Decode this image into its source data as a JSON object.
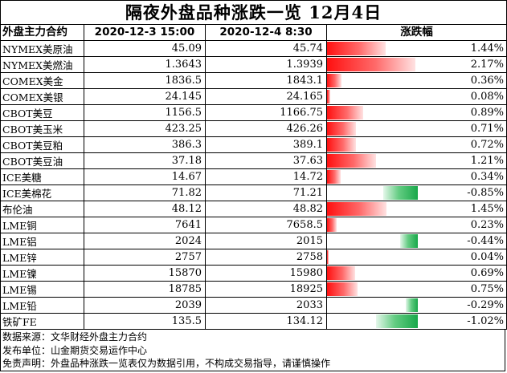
{
  "title": "隔夜外盘品种涨跌一览 12月4日",
  "headers": {
    "name": "外盘主力合约",
    "prev": "2020-12-3 15:00",
    "curr": "2020-12-4 8:30",
    "change": "涨跌幅"
  },
  "colors": {
    "up": "#ff1010",
    "down": "#19a84a"
  },
  "rows": [
    {
      "name": "NYMEX美原油",
      "prev": "45.09",
      "curr": "45.74",
      "change": "1.44%",
      "pct": 1.44
    },
    {
      "name": "NYMEX美燃油",
      "prev": "1.3643",
      "curr": "1.3939",
      "change": "2.17%",
      "pct": 2.17
    },
    {
      "name": "COMEX美金",
      "prev": "1836.5",
      "curr": "1843.1",
      "change": "0.36%",
      "pct": 0.36
    },
    {
      "name": "COMEX美银",
      "prev": "24.145",
      "curr": "24.165",
      "change": "0.08%",
      "pct": 0.08
    },
    {
      "name": "CBOT美豆",
      "prev": "1156.5",
      "curr": "1166.75",
      "change": "0.89%",
      "pct": 0.89
    },
    {
      "name": "CBOT美玉米",
      "prev": "423.25",
      "curr": "426.26",
      "change": "0.71%",
      "pct": 0.71
    },
    {
      "name": "CBOT美豆粕",
      "prev": "386.3",
      "curr": "389.1",
      "change": "0.72%",
      "pct": 0.72
    },
    {
      "name": "CBOT美豆油",
      "prev": "37.18",
      "curr": "37.63",
      "change": "1.21%",
      "pct": 1.21
    },
    {
      "name": "ICE美糖",
      "prev": "14.67",
      "curr": "14.72",
      "change": "0.34%",
      "pct": 0.34
    },
    {
      "name": "ICE美棉花",
      "prev": "71.82",
      "curr": "71.21",
      "change": "-0.85%",
      "pct": -0.85
    },
    {
      "name": "布伦油",
      "prev": "48.12",
      "curr": "48.82",
      "change": "1.45%",
      "pct": 1.45
    },
    {
      "name": "LME铜",
      "prev": "7641",
      "curr": "7658.5",
      "change": "0.23%",
      "pct": 0.23
    },
    {
      "name": "LME铝",
      "prev": "2024",
      "curr": "2015",
      "change": "-0.44%",
      "pct": -0.44
    },
    {
      "name": "LME锌",
      "prev": "2757",
      "curr": "2758",
      "change": "0.04%",
      "pct": 0.04
    },
    {
      "name": "LME镍",
      "prev": "15870",
      "curr": "15980",
      "change": "0.69%",
      "pct": 0.69
    },
    {
      "name": "LME锡",
      "prev": "18785",
      "curr": "18925",
      "change": "0.75%",
      "pct": 0.75
    },
    {
      "name": "LME铅",
      "prev": "2039",
      "curr": "2033",
      "change": "-0.29%",
      "pct": -0.29
    },
    {
      "name": "铁矿FE",
      "prev": "135.5",
      "curr": "134.12",
      "change": "-1.02%",
      "pct": -1.02
    }
  ],
  "footer": {
    "source": "数据来源：文华财经外盘主力合约",
    "publisher": "发布单位：山金期货交易运作中心",
    "disclaimer": "免责声明：外盘品种涨跌一览表仅为数据引用，不构成交易指导，请谨慎操作"
  }
}
